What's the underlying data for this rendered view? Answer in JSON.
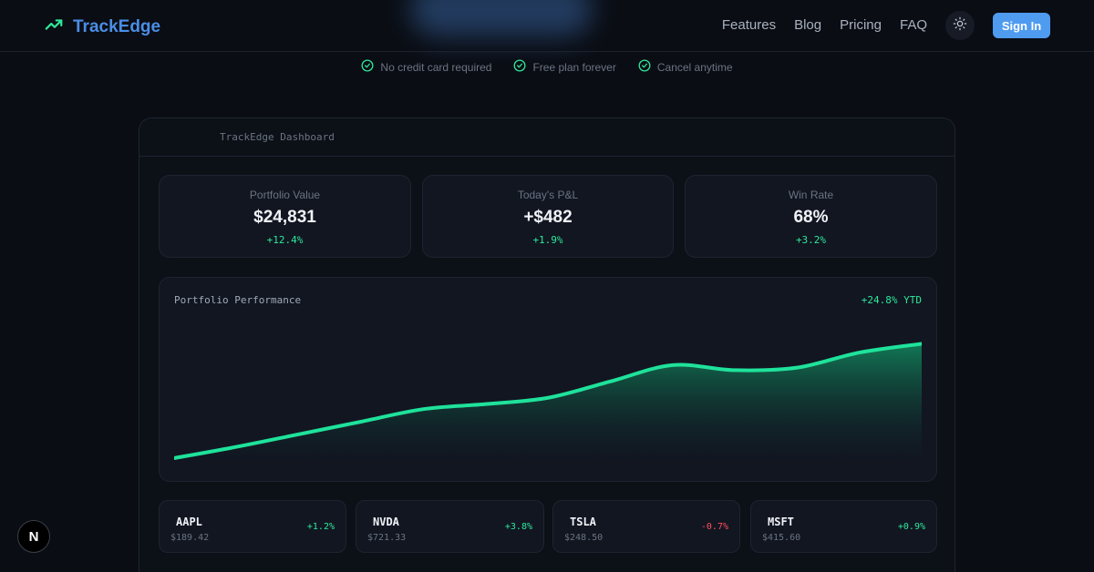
{
  "app": {
    "name": "TrackEdge"
  },
  "nav": {
    "links": [
      "Features",
      "Blog",
      "Pricing",
      "FAQ"
    ],
    "theme_toggle_icon": "sun-icon",
    "signin_label": "Sign In"
  },
  "perks": [
    "No credit card required",
    "Free plan forever",
    "Cancel anytime"
  ],
  "dashboard": {
    "title": "TrackEdge Dashboard",
    "stats": [
      {
        "label": "Portfolio Value",
        "value": "$24,831",
        "change": "+12.4%"
      },
      {
        "label": "Today's P&L",
        "value": "+$482",
        "change": "+1.9%"
      },
      {
        "label": "Win Rate",
        "value": "68%",
        "change": "+3.2%"
      }
    ],
    "performance": {
      "title": "Portfolio Performance",
      "ytd": "+24.8% YTD"
    },
    "tickers": [
      {
        "symbol": "AAPL",
        "price": "$189.42",
        "change": "+1.2%",
        "positive": true
      },
      {
        "symbol": "NVDA",
        "price": "$721.33",
        "change": "+3.8%",
        "positive": true
      },
      {
        "symbol": "TSLA",
        "price": "$248.50",
        "change": "-0.7%",
        "positive": false
      },
      {
        "symbol": "MSFT",
        "price": "$415.60",
        "change": "+0.9%",
        "positive": true
      }
    ]
  },
  "chart_data": {
    "type": "area",
    "title": "Portfolio Performance",
    "x": [
      0,
      1,
      2,
      3,
      4,
      5,
      6,
      7,
      8,
      9,
      10,
      11,
      12
    ],
    "values": [
      0.0,
      0.09,
      0.19,
      0.29,
      0.39,
      0.43,
      0.48,
      0.61,
      0.74,
      0.7,
      0.72,
      0.84,
      0.91
    ],
    "ylim": [
      0,
      1
    ],
    "grid": false,
    "colors": {
      "line": "#1fe29b",
      "fill_top": "#11895e",
      "fill_bottom": "#111621"
    }
  },
  "colors": {
    "accent": "#4a8ee6",
    "positive": "#2ee89a",
    "negative": "#ff4d5e",
    "button": "#4f9bf0",
    "background": "#0a0d14"
  },
  "badge": {
    "letter": "N"
  }
}
